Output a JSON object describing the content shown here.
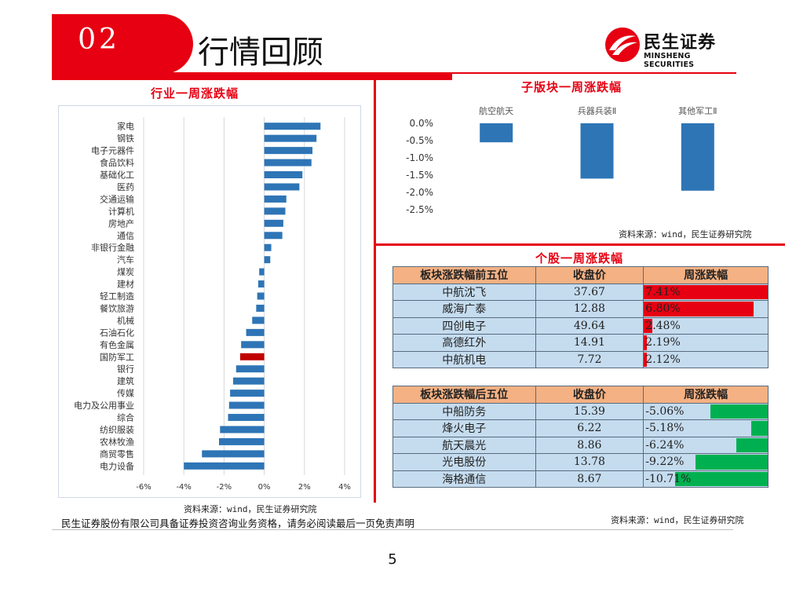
{
  "header": {
    "section_number": "02",
    "title": "行情回顾"
  },
  "logo": {
    "cn": "民生证券",
    "en": "MINSHENG SECURITIES"
  },
  "industry_chart": {
    "title": "行业一周涨跌幅",
    "source": "资料来源：wind，民生证券研究院",
    "chart_data": {
      "type": "bar",
      "orientation": "horizontal",
      "categories": [
        "家电",
        "钢铁",
        "电子元器件",
        "食品饮料",
        "基础化工",
        "医药",
        "交通运输",
        "计算机",
        "房地产",
        "通信",
        "非银行金融",
        "汽车",
        "煤炭",
        "建材",
        "轻工制造",
        "餐饮旅游",
        "机械",
        "石油石化",
        "有色金属",
        "国防军工",
        "银行",
        "建筑",
        "传媒",
        "电力及公用事业",
        "综合",
        "纺织服装",
        "农林牧渔",
        "商贸零售",
        "电力设备"
      ],
      "values": [
        2.8,
        2.6,
        2.4,
        2.35,
        1.9,
        1.75,
        1.1,
        1.05,
        0.95,
        0.9,
        0.35,
        0.3,
        -0.25,
        -0.3,
        -0.35,
        -0.4,
        -0.6,
        -0.9,
        -1.15,
        -1.2,
        -1.4,
        -1.55,
        -1.7,
        -1.75,
        -1.8,
        -2.2,
        -2.25,
        -3.1,
        -4.0
      ],
      "highlight_category": "国防军工",
      "xlim": [
        -6,
        4
      ],
      "xticks": [
        "-6%",
        "-4%",
        "-2%",
        "0%",
        "2%",
        "4%"
      ],
      "xtick_values": [
        -6,
        -4,
        -2,
        0,
        2,
        4
      ],
      "grid": true,
      "colors": {
        "bar": "#2e75b6",
        "highlight": "#c00000"
      }
    }
  },
  "subsector_chart": {
    "title": "子版块一周涨跌幅",
    "source": "资料来源：wind，民生证券研究院",
    "chart_data": {
      "type": "bar",
      "categories": [
        "航空航天",
        "兵器兵装Ⅱ",
        "其他军工Ⅱ"
      ],
      "values": [
        -0.55,
        -1.6,
        -1.95
      ],
      "ylim": [
        -2.5,
        0
      ],
      "yticks": [
        "0.0%",
        "-0.5%",
        "-1.0%",
        "-1.5%",
        "-2.0%",
        "-2.5%"
      ],
      "ytick_values": [
        0,
        -0.5,
        -1.0,
        -1.5,
        -2.0,
        -2.5
      ],
      "grid": false,
      "colors": {
        "bar": "#2e75b6"
      }
    }
  },
  "stock_section": {
    "title": "个股一周涨跌幅",
    "source": "资料来源：wind，民生证券研究院",
    "top5": {
      "headers": [
        "板块涨跌幅前五位",
        "收盘价",
        "周涨跌幅"
      ],
      "rows": [
        {
          "name": "中航沈飞",
          "price": "37.67",
          "change": "7.41%",
          "value": 7.41
        },
        {
          "name": "威海广泰",
          "price": "12.88",
          "change": "6.80%",
          "value": 6.8
        },
        {
          "name": "四创电子",
          "price": "49.64",
          "change": "2.48%",
          "value": 2.48
        },
        {
          "name": "高德红外",
          "price": "14.91",
          "change": "2.19%",
          "value": 2.19
        },
        {
          "name": "中航机电",
          "price": "7.72",
          "change": "2.12%",
          "value": 2.12
        }
      ],
      "color": "#e60012"
    },
    "bottom5": {
      "headers": [
        "板块涨跌幅后五位",
        "收盘价",
        "周涨跌幅"
      ],
      "rows": [
        {
          "name": "中船防务",
          "price": "15.39",
          "change": "-5.06%",
          "value": -5.06
        },
        {
          "name": "烽火电子",
          "price": "6.22",
          "change": "-5.18%",
          "value": -5.18
        },
        {
          "name": "航天晨光",
          "price": "8.86",
          "change": "-6.24%",
          "value": -6.24
        },
        {
          "name": "光电股份",
          "price": "13.78",
          "change": "-9.22%",
          "value": -9.22
        },
        {
          "name": "海格通信",
          "price": "8.67",
          "change": "-10.71%",
          "value": -10.71
        }
      ],
      "color": "#00b050"
    }
  },
  "footer": {
    "disclaimer": "民生证券股份有限公司具备证券投资咨询业务资格，请务必阅读最后一页免责声明",
    "page_number": "5"
  }
}
